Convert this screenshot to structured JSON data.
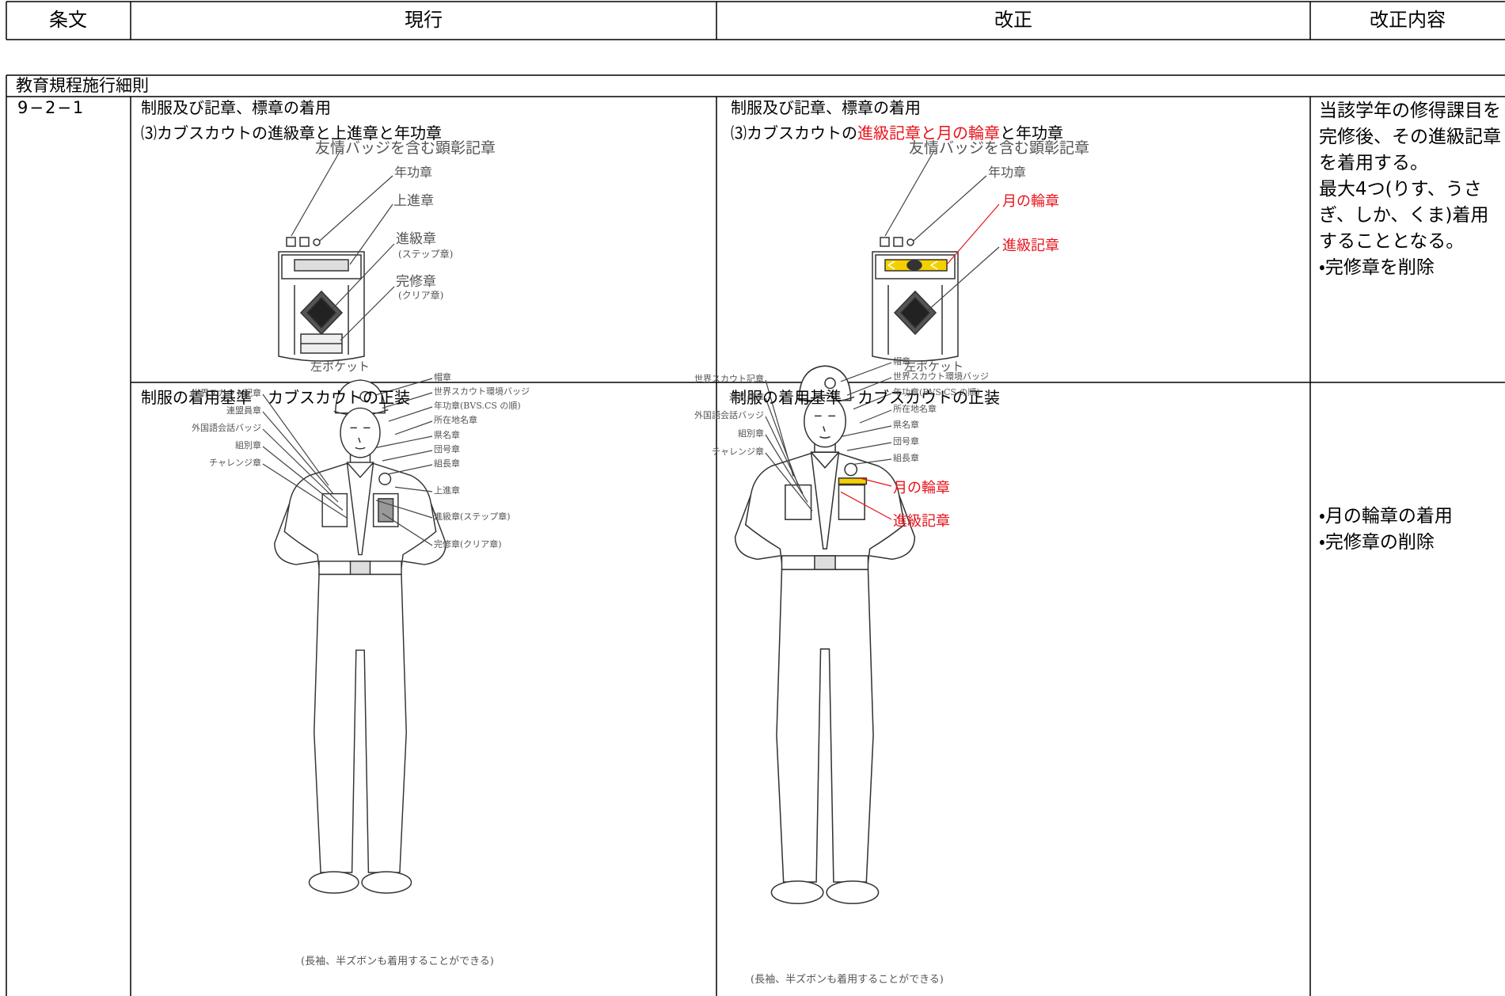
{
  "header": {
    "columns": [
      "条文",
      "現行",
      "改正",
      "改正内容"
    ]
  },
  "section_title": "教育規程施行細則",
  "article": "9−2−1",
  "current_1": {
    "title": "制服及び記章、標章の着用",
    "subtitle": "⑶カブスカウトの進級章と上進章と年功章",
    "figure": {
      "labels": [
        "友情バッジを含む顕彰記章",
        "年功章",
        "上進章",
        "進級章",
        "(ステップ章)",
        "完修章",
        "(クリア章)"
      ],
      "caption": "左ポケット"
    }
  },
  "revised_1": {
    "title": "制服及び記章、標章の着用",
    "subtitle": [
      "⑶カブスカウトの",
      "進級記章と月の輪章",
      "と年功章"
    ],
    "figure": {
      "labels": [
        "友情バッジを含む顕彰記章",
        "年功章",
        "月の輪章",
        "進級記章"
      ],
      "caption": "左ポケット"
    }
  },
  "notes_1": [
    "当該学年の修得課目を完修後、その進級記章を着用する。",
    "最大4つ(りす、うさぎ、しか、くま)着用することとなる。",
    "・完修章を削除"
  ],
  "current_2": {
    "title": "制服の着用基準　カブスカウトの正装",
    "figure": {
      "left_labels": [
        "世界スカウト記章",
        "連盟員章",
        "外国語会話バッジ",
        "組別章",
        "チャレンジ章"
      ],
      "right_labels": [
        "帽章",
        "世界スカウト環境バッジ",
        "年功章(BVS.CS の順)",
        "所在地名章",
        "県名章",
        "団号章",
        "組長章",
        "上進章",
        "進級章(ステップ章)",
        "完修章(クリア章)"
      ],
      "caption": "(長袖、半ズボンも着用することができる)"
    }
  },
  "revised_2": {
    "title": "制服の着用基準　カブスカウトの正装",
    "figure": {
      "left_labels": [
        "世界スカウト記章",
        "連盟員章",
        "外国語会話バッジ",
        "組別章",
        "チャレンジ章"
      ],
      "right_labels": [
        "帽章",
        "世界スカウト環境バッジ",
        "年功章(BVS.CS の順)",
        "所在地名章",
        "県名章",
        "団号章",
        "組長章",
        "月の輪章",
        "進級記章"
      ],
      "caption": "(長袖、半ズボンも着用することができる)"
    }
  },
  "notes_2": [
    "・月の輪章の着用",
    "・完修章の削除"
  ]
}
